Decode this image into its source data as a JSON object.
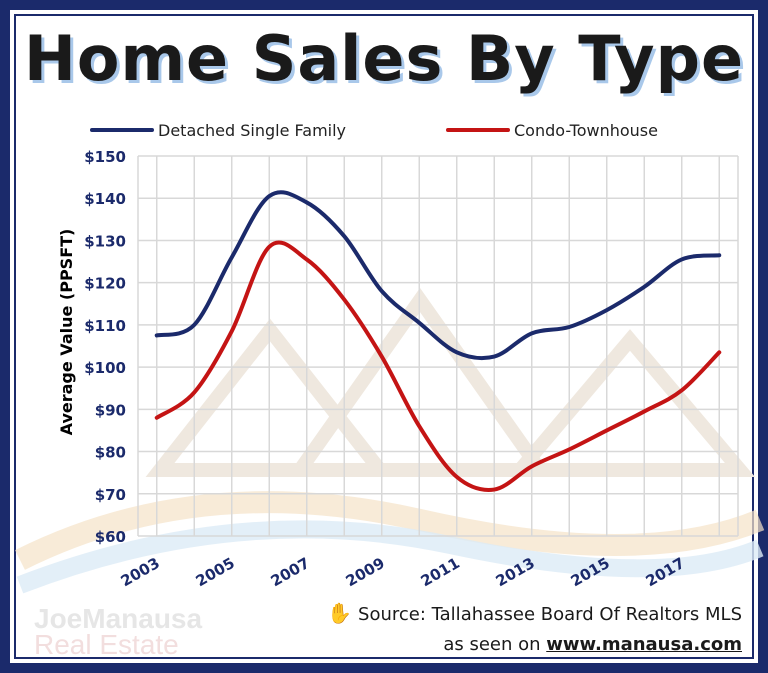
{
  "colors": {
    "frame": "#1b2a6b",
    "detached": "#1b2a6b",
    "condo": "#c41414",
    "grid": "#d8d8d8",
    "axis_text": "#1b2a6b"
  },
  "watermark": {
    "line1": "JoeManausa",
    "line2": "Real Estate"
  },
  "source": {
    "hand_icon": "✋",
    "line1": "Source: Tallahassee Board Of Realtors MLS",
    "line2_prefix": "as seen on ",
    "url": "www.manausa.com"
  },
  "chart_data": {
    "type": "line",
    "title": "Home Sales By Type",
    "ylabel": "Average Value (PPSFT)",
    "xlabel": "",
    "ylim": [
      60,
      150
    ],
    "yticks": [
      60,
      70,
      80,
      90,
      100,
      110,
      120,
      130,
      140,
      150
    ],
    "ytick_labels": [
      "$60",
      "$70",
      "$80",
      "$90",
      "$100",
      "$110",
      "$120",
      "$130",
      "$140",
      "$150"
    ],
    "x": [
      2003,
      2004,
      2005,
      2006,
      2007,
      2008,
      2009,
      2010,
      2011,
      2012,
      2013,
      2014,
      2015,
      2016,
      2017,
      2018
    ],
    "x_tick_labels": [
      "2003",
      "2005",
      "2007",
      "2009",
      "2011",
      "2013",
      "2015",
      "2017"
    ],
    "grid": true,
    "legend_position": "top",
    "series": [
      {
        "name": "Detached Single Family",
        "color": "#1b2a6b",
        "values": [
          107.5,
          110,
          126,
          140.5,
          139,
          131,
          118,
          110.5,
          103.5,
          102.5,
          108,
          109.5,
          113.5,
          119,
          125.5,
          126.5
        ]
      },
      {
        "name": "Condo-Townhouse",
        "color": "#c41414",
        "values": [
          88,
          94,
          108.5,
          128.5,
          125.5,
          116,
          102.5,
          86,
          74,
          71,
          76.5,
          80.5,
          85,
          89.5,
          94.5,
          103.5
        ]
      }
    ]
  }
}
